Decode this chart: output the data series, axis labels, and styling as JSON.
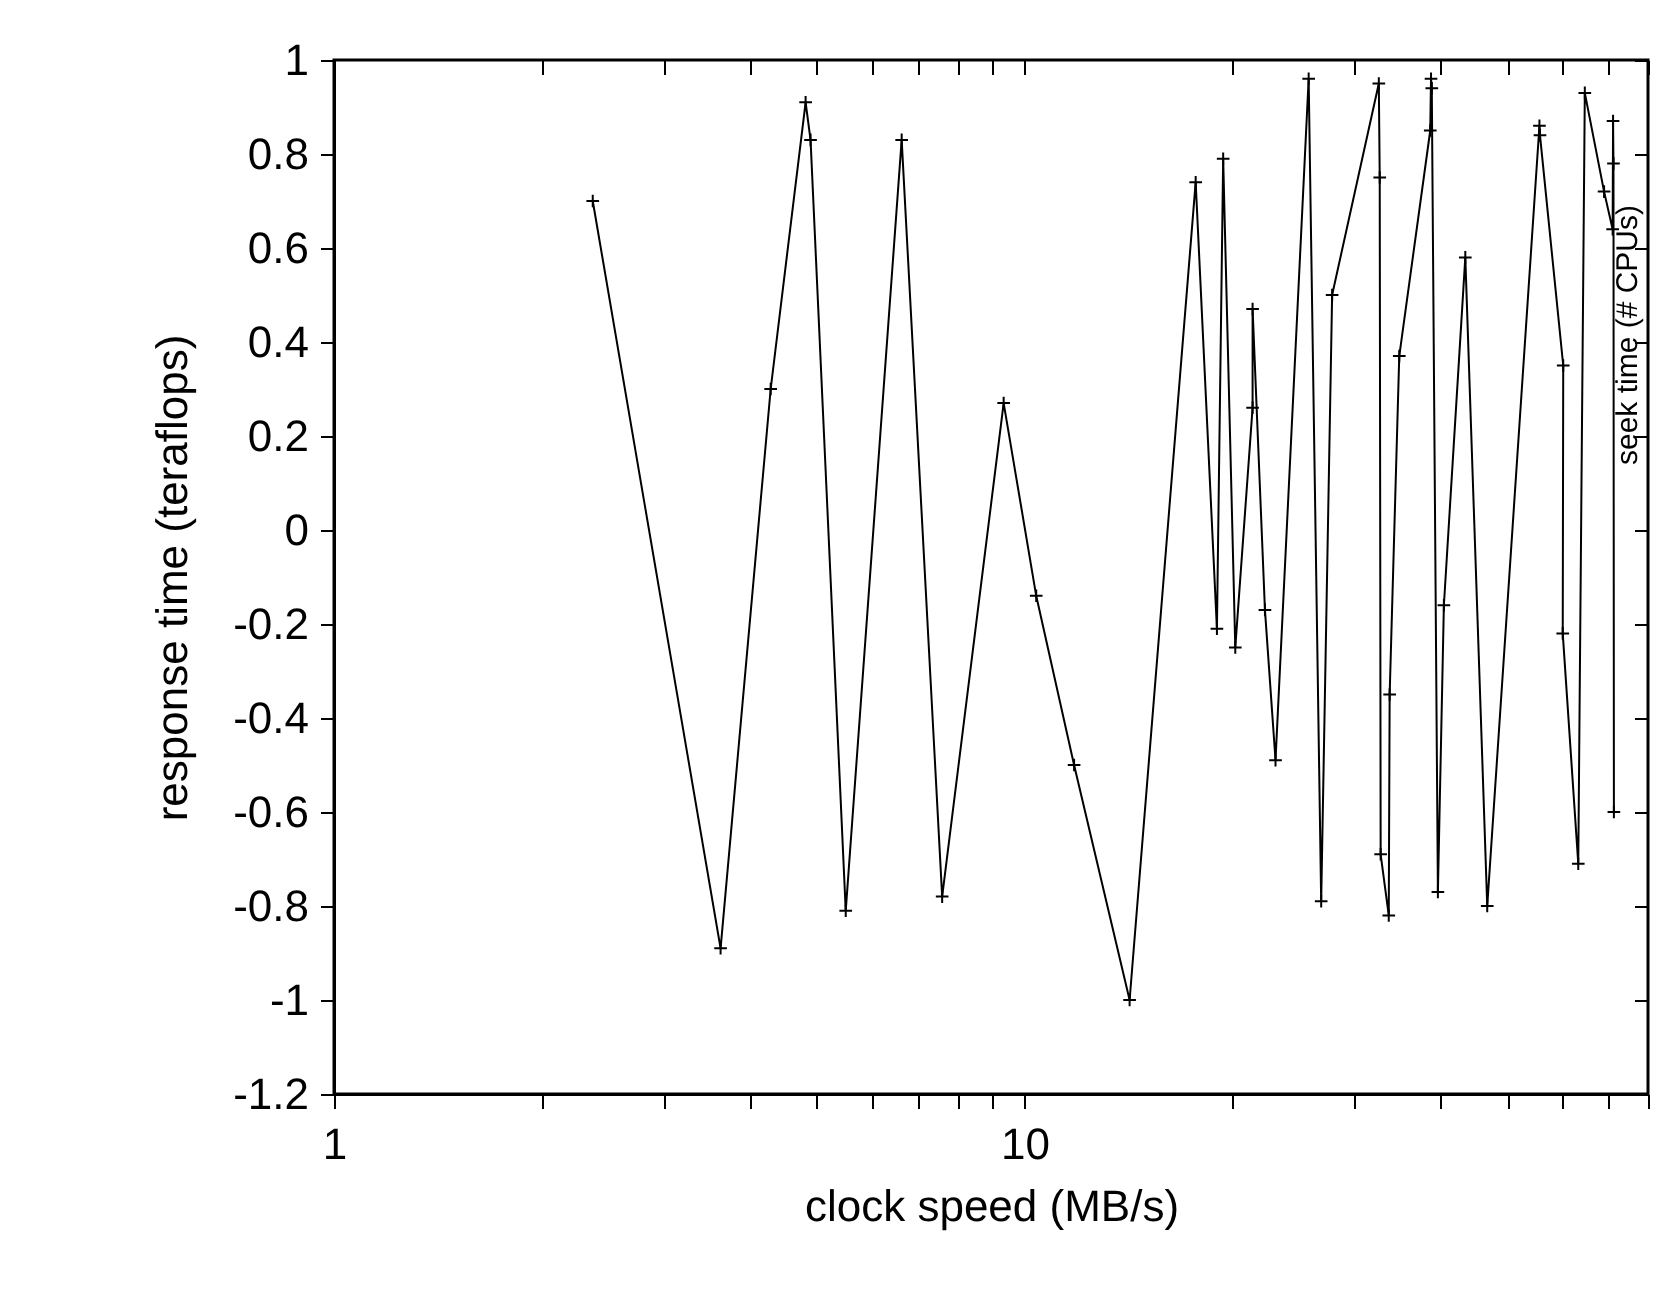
{
  "chart_data": {
    "type": "line",
    "xlabel": "clock speed (MB/s)",
    "ylabel": "response time (teraflops)",
    "y2label": "seek time (# CPUs)",
    "log": "x",
    "xlim": [
      1,
      80
    ],
    "ylim": [
      -1.2,
      1
    ],
    "xticks": [
      1,
      {
        "value": 2,
        "label": null
      },
      {
        "value": 3,
        "label": null
      },
      {
        "value": 4,
        "label": null
      },
      {
        "value": 5,
        "label": null
      },
      {
        "value": 6,
        "label": null
      },
      {
        "value": 7,
        "label": null
      },
      {
        "value": 8,
        "label": null
      },
      {
        "value": 9,
        "label": null
      },
      10,
      {
        "value": 20,
        "label": null
      },
      {
        "value": 30,
        "label": null
      },
      {
        "value": 40,
        "label": null
      },
      {
        "value": 50,
        "label": null
      },
      {
        "value": 60,
        "label": null
      },
      {
        "value": 70,
        "label": null
      },
      {
        "value": 80,
        "label": null
      }
    ],
    "yticks": [
      -1.2,
      -1,
      -0.8,
      -0.6,
      -0.4,
      -0.2,
      0,
      0.2,
      0.4,
      0.6,
      0.8,
      1
    ],
    "grid": false,
    "marker": "cross",
    "line_style": "solid",
    "x": [
      2.37,
      3.63,
      4.29,
      4.82,
      4.9,
      5.51,
      6.64,
      7.6,
      9.33,
      10.4,
      11.8,
      14.2,
      17.7,
      19.0,
      19.4,
      20.2,
      21.4,
      21.4,
      22.3,
      23.1,
      25.8,
      26.9,
      27.9,
      32.6,
      32.7,
      32.8,
      33.7,
      33.8,
      34.9,
      38.7,
      38.8,
      38.9,
      39.7,
      40.5,
      43.5,
      46.8,
      55.7,
      55.8,
      60.3,
      60.2,
      63.4,
      64.8,
      69.1,
      71.1,
      71.2,
      71.3,
      71.4
    ],
    "series": [
      {
        "color": "#000000",
        "values": [
          0.7,
          -0.89,
          0.3,
          0.91,
          0.83,
          -0.81,
          0.83,
          -0.78,
          0.27,
          -0.14,
          -0.5,
          -1.0,
          0.74,
          -0.21,
          0.79,
          -0.25,
          0.26,
          0.47,
          -0.17,
          -0.49,
          0.96,
          -0.79,
          0.5,
          0.95,
          0.75,
          -0.69,
          -0.82,
          -0.35,
          0.37,
          0.85,
          0.96,
          0.94,
          -0.77,
          -0.16,
          0.58,
          -0.8,
          0.86,
          0.84,
          0.35,
          -0.22,
          -0.71,
          0.93,
          0.72,
          0.64,
          0.87,
          0.78,
          -0.6
        ]
      }
    ]
  }
}
